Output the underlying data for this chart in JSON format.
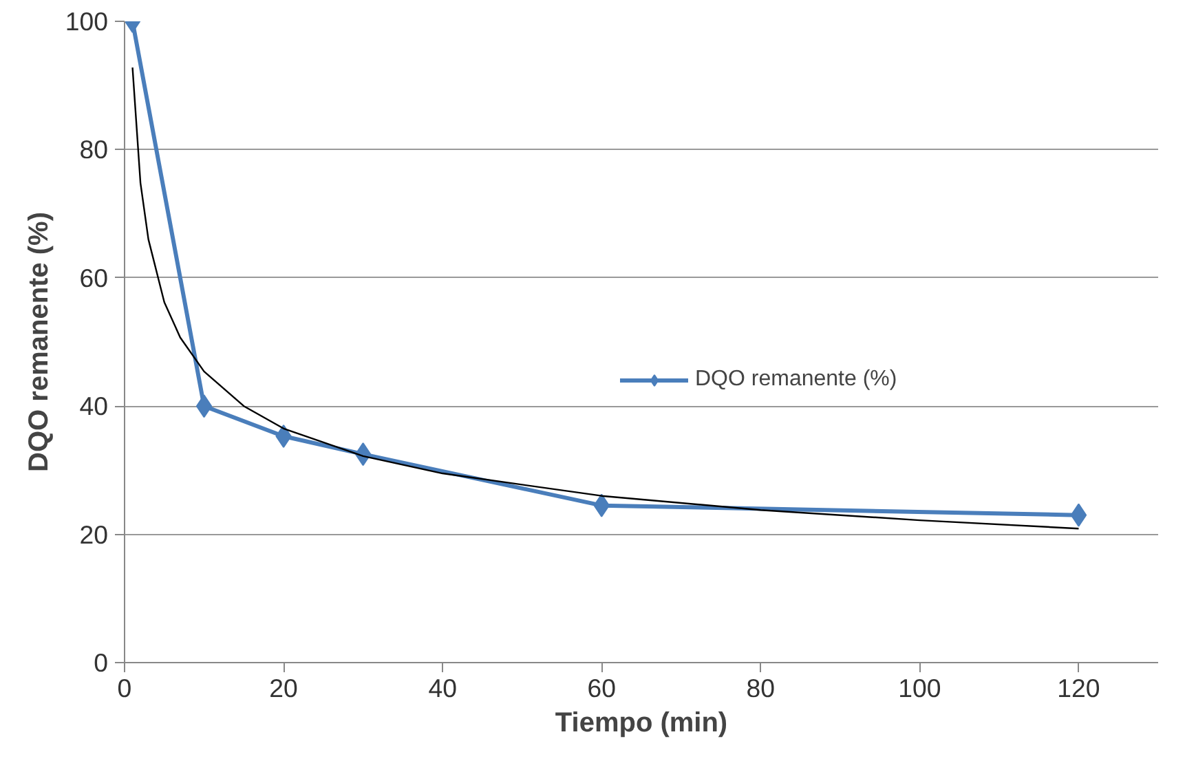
{
  "chart_data": {
    "type": "line",
    "xlabel": "Tiempo (min)",
    "ylabel": "DQO remanente (%)",
    "xlim": [
      0,
      130
    ],
    "xticks": [
      0,
      20,
      40,
      60,
      80,
      100,
      120
    ],
    "ylim": [
      0,
      100
    ],
    "yticks": [
      0,
      20,
      40,
      60,
      80,
      100
    ],
    "grid": "y",
    "legend": "right",
    "marker": "diamond",
    "series": [
      {
        "name": "DQO remanente (%)",
        "color": "#4a7ebb",
        "x": [
          1,
          10,
          20,
          30,
          60,
          120
        ],
        "values": [
          100,
          40,
          35.3,
          32.5,
          24.5,
          23
        ]
      },
      {
        "type": "line",
        "color": "#000000",
        "marker": "none",
        "x": [
          1,
          2,
          3,
          5,
          7,
          10,
          15,
          20,
          30,
          40,
          60,
          80,
          100,
          120
        ],
        "values": [
          92.8,
          74.8,
          66.0,
          56.2,
          50.7,
          45.4,
          40.0,
          36.5,
          32.2,
          29.5,
          26.0,
          23.8,
          22.2,
          20.9
        ]
      }
    ]
  }
}
